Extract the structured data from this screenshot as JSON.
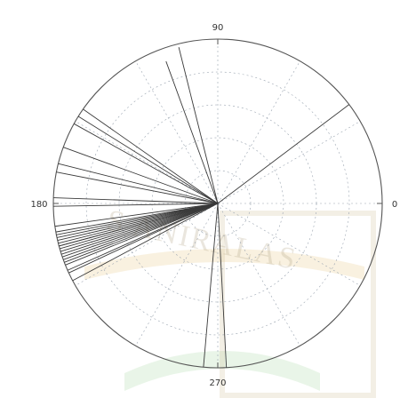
{
  "chart_data": {
    "type": "polar-line",
    "theta_unit": "degrees",
    "theta_ticks": [
      "0",
      "90",
      "180",
      "270"
    ],
    "theta_tick_values": [
      0,
      90,
      180,
      270
    ],
    "radial_grid": true,
    "angular_grid": true,
    "r_max": 1,
    "series": [
      {
        "angles": [
          37,
          104,
          110,
          145,
          148,
          151,
          160,
          166,
          169,
          178,
          181,
          188,
          190,
          191,
          192,
          193,
          194,
          195,
          195,
          196,
          197,
          198,
          199,
          200,
          201,
          202,
          204,
          205,
          208,
          265,
          273
        ],
        "r": [
          1,
          0.98,
          0.92,
          1,
          1,
          1,
          1,
          1,
          1,
          1,
          1,
          1,
          1,
          1,
          1,
          1,
          1,
          1,
          1,
          1,
          1,
          1,
          1,
          1,
          1,
          1,
          1,
          1,
          1,
          1,
          1
        ]
      }
    ]
  },
  "colors": {
    "line": "#3a3a3a",
    "grid": "#9aa4b0",
    "outer_circle": "#555555",
    "watermark_text": "#b5a78a",
    "watermark_band": "#f4e6c6",
    "watermark_band_green": "#d7ecd5"
  },
  "watermark": {
    "text": "S ANIRALAS"
  }
}
